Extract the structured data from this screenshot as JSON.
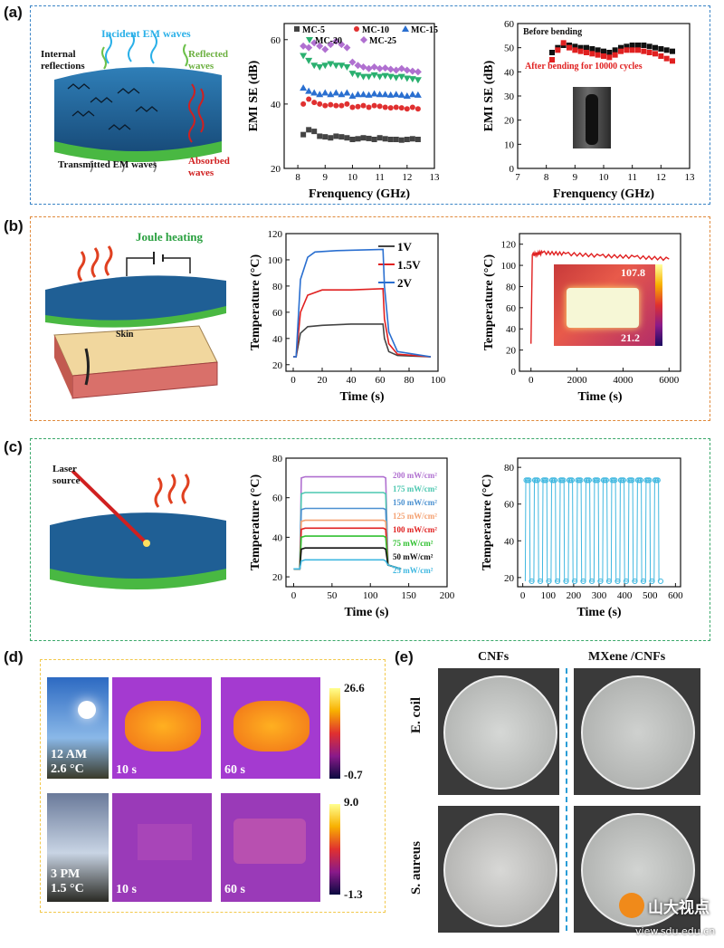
{
  "labels": {
    "a": "(a)",
    "b": "(b)",
    "c": "(c)",
    "d": "(d)",
    "e": "(e)"
  },
  "colors": {
    "box_a": "#3a84c6",
    "box_b": "#e08a3c",
    "box_c": "#3aa86a",
    "box_d": "#f2c84b",
    "box_e_div": "#2a9dd6"
  },
  "schematic_a": {
    "incident": "Incident EM waves",
    "internal": "Internal reflections",
    "reflected": "Reflected waves",
    "transmitted": "Transmitted EM waves",
    "absorbed": "Absorbed waves"
  },
  "schematic_b": {
    "joule": "Joule heating",
    "skin": "Skin"
  },
  "schematic_c": {
    "laser": "Laser source"
  },
  "chart_data": [
    {
      "id": "a_mid",
      "type": "scatter",
      "xlabel": "Frenquency (GHz)",
      "ylabel": "EMI SE (dB)",
      "xlim": [
        7.5,
        13
      ],
      "ylim": [
        20,
        65
      ],
      "xticks": [
        "8",
        "9",
        "10",
        "11",
        "12",
        "13"
      ],
      "yticks": [
        "20",
        "40",
        "60"
      ],
      "x": [
        8.2,
        8.4,
        8.6,
        8.8,
        9.0,
        9.2,
        9.4,
        9.6,
        9.8,
        10.0,
        10.2,
        10.4,
        10.6,
        10.8,
        11.0,
        11.2,
        11.4,
        11.6,
        11.8,
        12.0,
        12.2,
        12.4
      ],
      "series": [
        {
          "name": "MC-5",
          "color": "#444444",
          "marker": "square",
          "values": [
            30.5,
            32,
            31.5,
            30,
            29.8,
            29.5,
            30,
            29.8,
            29.5,
            29,
            29.2,
            29.5,
            29.3,
            29,
            29.5,
            29.2,
            29,
            29,
            28.8,
            29,
            29.2,
            29
          ]
        },
        {
          "name": "MC-10",
          "color": "#e03030",
          "marker": "circle",
          "values": [
            40,
            41.5,
            40.5,
            40,
            39.5,
            39.8,
            39.5,
            39.5,
            40,
            39,
            39.2,
            39.5,
            39,
            39.5,
            39.3,
            39,
            38.8,
            39,
            38.8,
            38.5,
            39,
            38.5
          ]
        },
        {
          "name": "MC-15",
          "color": "#2a6fd0",
          "marker": "triangle",
          "values": [
            45,
            44,
            43.5,
            43,
            43.5,
            43,
            43.5,
            43,
            43.5,
            42.5,
            43,
            43,
            42.8,
            43.2,
            43,
            43,
            42.8,
            43,
            42.8,
            42.5,
            43,
            42.8
          ]
        },
        {
          "name": "MC-20",
          "color": "#2bb070",
          "marker": "triangle-down",
          "values": [
            55,
            53.5,
            52,
            51.5,
            52,
            52.5,
            52,
            52,
            51.5,
            49.5,
            49,
            48.5,
            48.5,
            49,
            48.5,
            48.8,
            48.5,
            48.2,
            48.5,
            48,
            47.8,
            47.5
          ]
        },
        {
          "name": "MC-25",
          "color": "#b070d0",
          "marker": "diamond",
          "values": [
            58,
            57.5,
            59,
            58,
            57,
            58.5,
            59.5,
            58.5,
            57.5,
            53,
            52,
            51.5,
            51,
            51.5,
            51,
            51.2,
            50.8,
            50.5,
            51,
            50.5,
            50.2,
            50
          ]
        }
      ]
    },
    {
      "id": "a_right",
      "type": "scatter",
      "xlabel": "Frenquency (GHz)",
      "ylabel": "EMI SE (dB)",
      "xlim": [
        7,
        13
      ],
      "ylim": [
        0,
        60
      ],
      "xticks": [
        "7",
        "8",
        "9",
        "10",
        "11",
        "12",
        "13"
      ],
      "yticks": [
        "0",
        "10",
        "20",
        "30",
        "40",
        "50",
        "60"
      ],
      "x": [
        8.2,
        8.4,
        8.6,
        8.8,
        9.0,
        9.2,
        9.4,
        9.6,
        9.8,
        10.0,
        10.2,
        10.4,
        10.6,
        10.8,
        11.0,
        11.2,
        11.4,
        11.6,
        11.8,
        12.0,
        12.2,
        12.4
      ],
      "series": [
        {
          "name": "Before bending",
          "color": "#111111",
          "marker": "square",
          "values": [
            48,
            50,
            51,
            51,
            50.5,
            50,
            50,
            49.5,
            49,
            48.5,
            48,
            49,
            50,
            50.5,
            51,
            51,
            51,
            50.5,
            50,
            49.5,
            49,
            48.5
          ]
        },
        {
          "name": "After bending for 10000 cycles",
          "color": "#e02020",
          "marker": "square",
          "values": [
            45,
            49,
            52,
            50,
            49,
            48.5,
            48,
            47.5,
            47,
            46.5,
            46,
            47,
            48.5,
            49,
            49,
            49,
            48.5,
            48,
            47.5,
            46.5,
            45.5,
            44.5
          ]
        }
      ]
    },
    {
      "id": "b_mid",
      "type": "line",
      "xlabel": "Time (s)",
      "ylabel": "Temperature (°C)",
      "xlim": [
        -5,
        100
      ],
      "ylim": [
        15,
        120
      ],
      "xticks": [
        "0",
        "20",
        "40",
        "60",
        "80",
        "100"
      ],
      "yticks": [
        "20",
        "40",
        "60",
        "80",
        "100",
        "120"
      ],
      "series": [
        {
          "name": "1V",
          "color": "#444444",
          "points": [
            [
              0,
              26
            ],
            [
              2,
              26
            ],
            [
              5,
              44
            ],
            [
              10,
              49
            ],
            [
              20,
              50
            ],
            [
              40,
              51
            ],
            [
              62,
              51
            ],
            [
              63,
              40
            ],
            [
              66,
              30
            ],
            [
              72,
              27
            ],
            [
              95,
              26
            ]
          ]
        },
        {
          "name": "1.5V",
          "color": "#e02020",
          "points": [
            [
              0,
              26
            ],
            [
              2,
              26
            ],
            [
              5,
              60
            ],
            [
              10,
              73
            ],
            [
              20,
              77
            ],
            [
              40,
              77
            ],
            [
              62,
              78
            ],
            [
              63,
              55
            ],
            [
              66,
              36
            ],
            [
              72,
              28
            ],
            [
              95,
              26
            ]
          ]
        },
        {
          "name": "2V",
          "color": "#2a6fd0",
          "points": [
            [
              0,
              26
            ],
            [
              2,
              26
            ],
            [
              5,
              85
            ],
            [
              10,
              102
            ],
            [
              15,
              106
            ],
            [
              30,
              107
            ],
            [
              62,
              108
            ],
            [
              63,
              80
            ],
            [
              66,
              45
            ],
            [
              72,
              30
            ],
            [
              95,
              26
            ]
          ]
        }
      ]
    },
    {
      "id": "b_right",
      "type": "line",
      "xlabel": "Time (s)",
      "ylabel": "Temperature (°C)",
      "xlim": [
        -500,
        6500
      ],
      "ylim": [
        0,
        130
      ],
      "xticks": [
        "0",
        "2000",
        "4000",
        "6000"
      ],
      "yticks": [
        "0",
        "20",
        "40",
        "60",
        "80",
        "100",
        "120"
      ],
      "series": [
        {
          "name": "",
          "color": "#e02020",
          "points": [
            [
              0,
              26
            ],
            [
              60,
              110
            ],
            [
              500,
              112
            ],
            [
              1500,
              111
            ],
            [
              3000,
              109
            ],
            [
              4500,
              108
            ],
            [
              6000,
              106
            ]
          ]
        }
      ],
      "inset": {
        "max": "107.8",
        "min": "21.2"
      }
    },
    {
      "id": "c_mid",
      "type": "line",
      "xlabel": "Time (s)",
      "ylabel": "Temperature (°C)",
      "xlim": [
        -10,
        200
      ],
      "ylim": [
        15,
        80
      ],
      "xticks": [
        "0",
        "50",
        "100",
        "150",
        "200"
      ],
      "yticks": [
        "20",
        "40",
        "60",
        "80"
      ],
      "series": [
        {
          "name": "200 mW/cm²",
          "color": "#b070d0",
          "level": 70
        },
        {
          "name": "175 mW/cm²",
          "color": "#4cc7b0",
          "level": 62
        },
        {
          "name": "150 mW/cm²",
          "color": "#4a90d0",
          "level": 54
        },
        {
          "name": "125 mW/cm²",
          "color": "#f4a070",
          "level": 48
        },
        {
          "name": "100 mW/cm²",
          "color": "#e02020",
          "level": 44
        },
        {
          "name": "75 mW/cm²",
          "color": "#30c030",
          "level": 40
        },
        {
          "name": "50 mW/cm²",
          "color": "#111111",
          "level": 34
        },
        {
          "name": "25 mW/cm²",
          "color": "#40b8e0",
          "level": 28
        }
      ]
    },
    {
      "id": "c_right",
      "type": "scatter",
      "xlabel": "Time (s)",
      "ylabel": "Temperature (°C)",
      "xlim": [
        -20,
        620
      ],
      "ylim": [
        15,
        85
      ],
      "xticks": [
        "0",
        "100",
        "200",
        "300",
        "400",
        "500",
        "600"
      ],
      "yticks": [
        "20",
        "40",
        "60",
        "80"
      ],
      "series": [
        {
          "name": "",
          "color": "#40b8e0",
          "high": 73,
          "low": 18,
          "cycles": 16
        }
      ]
    }
  ],
  "panel_d": {
    "row1_time": "12 AM",
    "row1_temp": "2.6 °C",
    "row2_time": "3 PM",
    "row2_temp": "1.5 °C",
    "t10": "10 s",
    "t60": "60 s",
    "scale1_max": "26.6",
    "scale1_min": "-0.7",
    "scale2_max": "9.0",
    "scale2_min": "-1.3"
  },
  "panel_e": {
    "col1": "CNFs",
    "col2": "MXene /CNFs",
    "row1": "E. coil",
    "row2": "S. aureus"
  },
  "watermark": {
    "brand": "山大视点",
    "url": "view.sdu.edu.cn"
  }
}
